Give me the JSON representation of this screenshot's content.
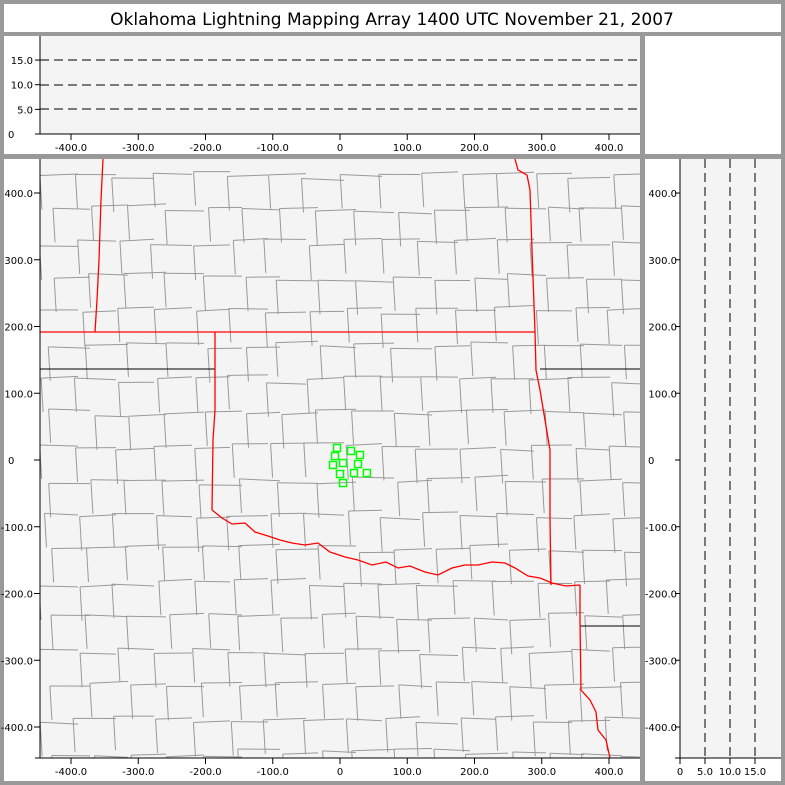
{
  "title": "Oklahoma Lightning Mapping Array   1400 UTC  November 21, 2007",
  "colors": {
    "background": "#999999",
    "plot": "#f4f4f4",
    "county": "#999999",
    "state_border": "#ff0000",
    "source": "#00ff00"
  },
  "chart_data": [
    {
      "panel": "altitude-vs-east-west",
      "type": "scatter",
      "x_ticks": [
        "-400.0",
        "-300.0",
        "-200.0",
        "-100.0",
        "0",
        "100.0",
        "200.0",
        "300.0",
        "400.0"
      ],
      "x_tick_values": [
        -400,
        -300,
        -200,
        -100,
        0,
        100,
        200,
        300,
        400
      ],
      "y_ticks": [
        "0",
        "5.0",
        "10.0",
        "15.0"
      ],
      "y_tick_values": [
        0,
        5,
        10,
        15
      ],
      "xlim": [
        -453,
        440
      ],
      "ylim": [
        0,
        20
      ],
      "dashed_gridlines": [
        5,
        10,
        15
      ],
      "points": []
    },
    {
      "panel": "plan-view-map",
      "type": "scatter",
      "x_ticks": [
        "-400.0",
        "-300.0",
        "-200.0",
        "-100.0",
        "0",
        "100.0",
        "200.0",
        "300.0",
        "400.0"
      ],
      "x_tick_values": [
        -400,
        -300,
        -200,
        -100,
        0,
        100,
        200,
        300,
        400
      ],
      "y_ticks": [
        "400.0",
        "300.0",
        "200.0",
        "100.0",
        "0",
        "-100.0",
        "-200.0",
        "-300.0",
        "-400.0"
      ],
      "y_tick_values": [
        400,
        300,
        200,
        100,
        0,
        -100,
        -200,
        -300,
        -400
      ],
      "xlim": [
        -453,
        440
      ],
      "ylim": [
        -447,
        450
      ],
      "points": [
        {
          "x": -4.5,
          "y": 18
        },
        {
          "x": 16.4,
          "y": 13.5
        },
        {
          "x": 29.7,
          "y": 7.5
        },
        {
          "x": -7.4,
          "y": 6
        },
        {
          "x": 4.5,
          "y": -4.5
        },
        {
          "x": -10.4,
          "y": -7.5
        },
        {
          "x": 26.8,
          "y": -6
        },
        {
          "x": 0,
          "y": -21
        },
        {
          "x": 20.8,
          "y": -19.5
        },
        {
          "x": 40,
          "y": -19.5
        },
        {
          "x": 4.5,
          "y": -34.5
        }
      ]
    },
    {
      "panel": "north-south-vs-altitude",
      "type": "scatter",
      "x_ticks": [
        "0",
        "5.0",
        "10.0",
        "15.0"
      ],
      "x_tick_values": [
        0,
        5,
        10,
        15
      ],
      "y_ticks": [
        "400.0",
        "300.0",
        "200.0",
        "100.0",
        "0",
        "-100.0",
        "-200.0",
        "-300.0",
        "-400.0"
      ],
      "y_tick_values": [
        400,
        300,
        200,
        100,
        0,
        -100,
        -200,
        -300,
        -400
      ],
      "xlim": [
        0,
        20
      ],
      "ylim": [
        -447,
        450
      ],
      "dashed_gridlines": [
        5,
        10,
        15
      ],
      "points": []
    }
  ]
}
